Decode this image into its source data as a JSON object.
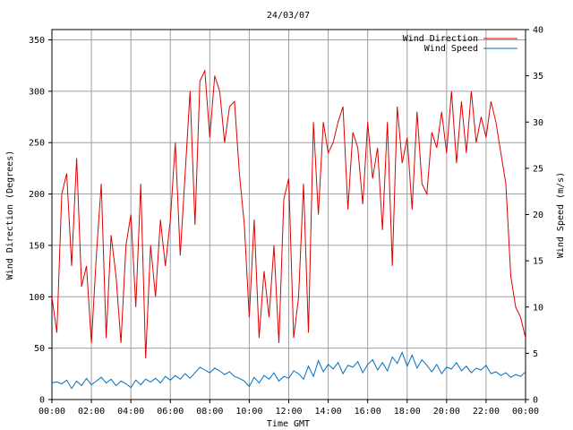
{
  "chart_data": {
    "type": "line",
    "title": "24/03/07",
    "xlabel": "Time GMT",
    "ylabel_left": "Wind Direction (Degrees)",
    "ylabel_right": "Wind Speed (m/s)",
    "x_ticks": [
      "00:00",
      "02:00",
      "04:00",
      "06:00",
      "08:00",
      "10:00",
      "12:00",
      "14:00",
      "16:00",
      "18:00",
      "20:00",
      "22:00",
      "00:00"
    ],
    "xlim_hours": [
      0,
      24
    ],
    "ylim_left": [
      0,
      360
    ],
    "ylim_right": [
      0,
      40
    ],
    "y_ticks_left": [
      0,
      50,
      100,
      150,
      200,
      250,
      300,
      350
    ],
    "y_ticks_right": [
      0,
      5,
      10,
      15,
      20,
      25,
      30,
      35,
      40
    ],
    "grid": true,
    "legend_position": "top-right",
    "series": [
      {
        "name": "Wind Direction",
        "axis": "left",
        "color": "#e00000",
        "x_hours": [
          0,
          0.25,
          0.5,
          0.75,
          1,
          1.25,
          1.5,
          1.75,
          2,
          2.25,
          2.5,
          2.75,
          3,
          3.25,
          3.5,
          3.75,
          4,
          4.25,
          4.5,
          4.75,
          5,
          5.25,
          5.5,
          5.75,
          6,
          6.25,
          6.5,
          6.75,
          7,
          7.25,
          7.5,
          7.75,
          8,
          8.25,
          8.5,
          8.75,
          9,
          9.25,
          9.5,
          9.75,
          10,
          10.25,
          10.5,
          10.75,
          11,
          11.25,
          11.5,
          11.75,
          12,
          12.25,
          12.5,
          12.75,
          13,
          13.25,
          13.5,
          13.75,
          14,
          14.25,
          14.5,
          14.75,
          15,
          15.25,
          15.5,
          15.75,
          16,
          16.25,
          16.5,
          16.75,
          17,
          17.25,
          17.5,
          17.75,
          18,
          18.25,
          18.5,
          18.75,
          19,
          19.25,
          19.5,
          19.75,
          20,
          20.25,
          20.5,
          20.75,
          21,
          21.25,
          21.5,
          21.75,
          22,
          22.25,
          22.5,
          22.75,
          23,
          23.25,
          23.5,
          23.75,
          24
        ],
        "values": [
          100,
          65,
          200,
          220,
          130,
          235,
          110,
          130,
          55,
          140,
          210,
          60,
          160,
          120,
          55,
          150,
          180,
          90,
          210,
          40,
          150,
          100,
          175,
          130,
          175,
          250,
          140,
          220,
          300,
          170,
          310,
          320,
          255,
          315,
          300,
          250,
          285,
          290,
          220,
          170,
          80,
          175,
          60,
          125,
          80,
          150,
          55,
          195,
          215,
          60,
          100,
          210,
          65,
          270,
          180,
          270,
          240,
          250,
          270,
          285,
          185,
          260,
          245,
          190,
          270,
          215,
          245,
          165,
          270,
          130,
          285,
          230,
          255,
          185,
          280,
          210,
          200,
          260,
          245,
          280,
          240,
          300,
          230,
          290,
          240,
          300,
          250,
          275,
          255,
          290,
          270,
          240,
          210,
          120,
          90,
          80,
          60
        ],
        "note": "readout"
      },
      {
        "name": "Wind Speed",
        "axis": "right",
        "color": "#0070c0",
        "x_hours": [
          0,
          0.25,
          0.5,
          0.75,
          1,
          1.25,
          1.5,
          1.75,
          2,
          2.25,
          2.5,
          2.75,
          3,
          3.25,
          3.5,
          3.75,
          4,
          4.25,
          4.5,
          4.75,
          5,
          5.25,
          5.5,
          5.75,
          6,
          6.25,
          6.5,
          6.75,
          7,
          7.25,
          7.5,
          7.75,
          8,
          8.25,
          8.5,
          8.75,
          9,
          9.25,
          9.5,
          9.75,
          10,
          10.25,
          10.5,
          10.75,
          11,
          11.25,
          11.5,
          11.75,
          12,
          12.25,
          12.5,
          12.75,
          13,
          13.25,
          13.5,
          13.75,
          14,
          14.25,
          14.5,
          14.75,
          15,
          15.25,
          15.5,
          15.75,
          16,
          16.25,
          16.5,
          16.75,
          17,
          17.25,
          17.5,
          17.75,
          18,
          18.25,
          18.5,
          18.75,
          19,
          19.25,
          19.5,
          19.75,
          20,
          20.25,
          20.5,
          20.75,
          21,
          21.25,
          21.5,
          21.75,
          22,
          22.25,
          22.5,
          22.75,
          23,
          23.25,
          23.5,
          23.75,
          24
        ],
        "values": [
          1.8,
          1.9,
          1.7,
          2.1,
          1.2,
          2.0,
          1.5,
          2.3,
          1.6,
          2.0,
          2.4,
          1.8,
          2.2,
          1.5,
          2.0,
          1.7,
          1.3,
          2.1,
          1.6,
          2.2,
          1.9,
          2.3,
          1.8,
          2.5,
          2.1,
          2.6,
          2.2,
          2.8,
          2.3,
          2.9,
          3.5,
          3.2,
          2.9,
          3.4,
          3.1,
          2.7,
          3.0,
          2.5,
          2.3,
          2.0,
          1.4,
          2.4,
          1.8,
          2.6,
          2.2,
          2.9,
          2.0,
          2.5,
          2.3,
          3.1,
          2.8,
          2.2,
          3.6,
          2.5,
          4.2,
          3.0,
          3.8,
          3.3,
          4.0,
          2.8,
          3.7,
          3.5,
          4.1,
          2.9,
          3.8,
          4.3,
          3.2,
          4.0,
          3.1,
          4.6,
          3.9,
          5.1,
          3.6,
          4.8,
          3.4,
          4.3,
          3.7,
          3.0,
          3.8,
          2.8,
          3.5,
          3.3,
          4.0,
          3.1,
          3.6,
          2.9,
          3.4,
          3.2,
          3.7,
          2.8,
          3.0,
          2.6,
          2.9,
          2.4,
          2.7,
          2.5,
          3.0
        ]
      }
    ]
  }
}
